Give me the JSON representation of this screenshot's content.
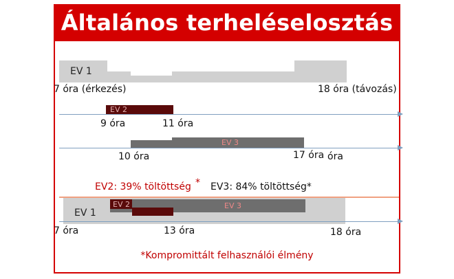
{
  "title": "Általános terheléselosztás",
  "row1": {
    "ev_label": "EV 1",
    "start_label": "7 óra (érkezés)",
    "end_label": "18 óra (távozás)"
  },
  "row2": {
    "ev_label": "EV 2",
    "start_label": "9 óra",
    "end_label": "11 óra"
  },
  "row3": {
    "ev_label": "EV 3",
    "start_label": "10 óra",
    "end_label": "17 óra",
    "end_label_extra": "óra"
  },
  "summary": {
    "ev2": "EV2: 39% töltöttség",
    "ev2_mark": "*",
    "ev3": "EV3: 84% töltöttség*"
  },
  "combined": {
    "ev1_label": "EV 1",
    "ev2_label": "EV 2",
    "ev3_label": "EV 3",
    "start_label": "7 óra",
    "mid_label": "13 óra",
    "end_label": "18 óra"
  },
  "footnote": "*Kompromittált felhasználói élmény",
  "colors": {
    "accent": "#d40000",
    "ev1": "#d0d0d0",
    "ev2": "#5a0a0a",
    "ev3": "#6e6e6e",
    "axis": "#7f9fbf"
  }
}
